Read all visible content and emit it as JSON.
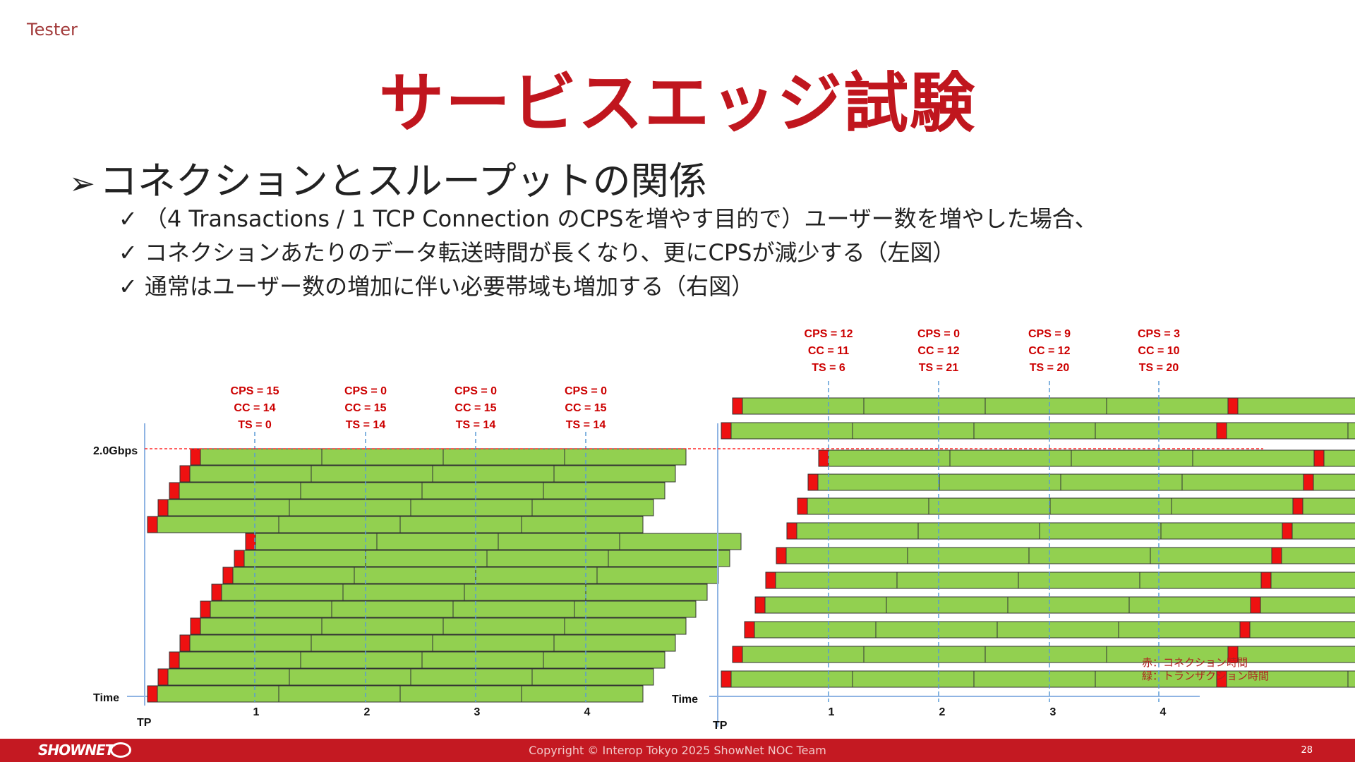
{
  "header": {
    "tester": "Tester",
    "title": "サービスエッジ試験",
    "heading": "コネクションとスループットの関係",
    "bullet_mark": "✓",
    "heading_mark": "➢"
  },
  "bullets": [
    "（4 Transactions / 1 TCP Connection のCPSを増やす目的で）ユーザー数を増やした場合、",
    "コネクションあたりのデータ転送時間が長くなり、更にCPSが減少する（左図）",
    "通常はユーザー数の増加に伴い必要帯域も増加する（右図）"
  ],
  "diagram": {
    "bandwidth_label": "2.0Gbps",
    "time_label": "Time",
    "tp_label": "TP",
    "tick_labels": [
      "1",
      "2",
      "3",
      "4"
    ],
    "left_stats": [
      [
        "CPS = 15",
        "CC = 14",
        "TS = 0"
      ],
      [
        "CPS = 0",
        "CC = 15",
        "TS = 14"
      ],
      [
        "CPS = 0",
        "CC = 15",
        "TS = 14"
      ],
      [
        "CPS = 0",
        "CC = 15",
        "TS = 14"
      ]
    ],
    "right_stats": [
      [
        "CPS = 12",
        "CC = 11",
        "TS = 6"
      ],
      [
        "CPS = 0",
        "CC = 12",
        "TS = 21"
      ],
      [
        "CPS = 9",
        "CC = 12",
        "TS = 20"
      ],
      [
        "CPS = 3",
        "CC = 10",
        "TS = 20"
      ]
    ],
    "legend": [
      "赤：コネクション時間",
      "緑：トランザクション時間"
    ],
    "colors": {
      "connection": "#ee1111",
      "transaction": "#92d050",
      "label_red": "#cc0000",
      "axis": "#8fb4e3",
      "dashed": "#5b9bd5",
      "limit": "#ff2a2a"
    }
  },
  "footer": {
    "logo": "SHOWNET",
    "copyright": "Copyright © Interop Tokyo 2025 ShowNet NOC Team",
    "page": "28"
  }
}
